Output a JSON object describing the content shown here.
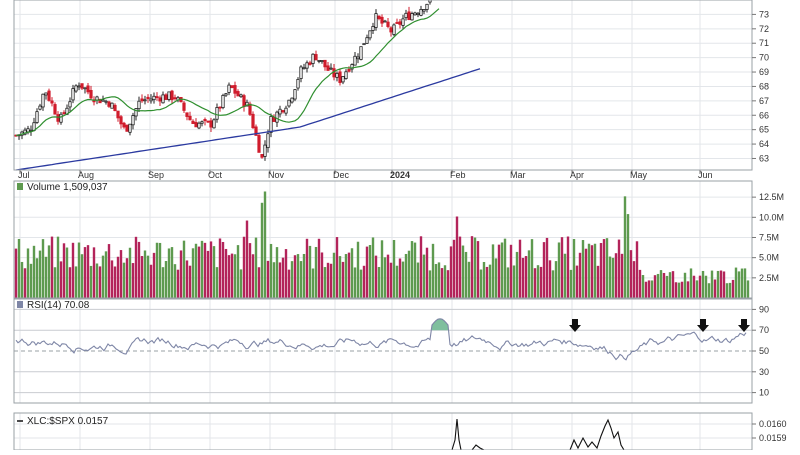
{
  "chart_data": {
    "type": "stock_chart_panels",
    "x_labels": [
      "Jul",
      "Aug",
      "Sep",
      "Oct",
      "Nov",
      "Dec",
      "2024",
      "Feb",
      "Mar",
      "Apr",
      "May",
      "Jun"
    ],
    "price_panel": {
      "type": "candlestick",
      "yticks": [
        63,
        64,
        65,
        66,
        67,
        68,
        69,
        70,
        71,
        72,
        73
      ],
      "ylim": [
        62.2,
        74.0
      ],
      "moving_average_colors": [
        "#2f8f2f",
        "#2b3aa0"
      ],
      "up_color": "#222222",
      "down_color": "#d01c2c"
    },
    "volume_panel": {
      "label": "Volume 1,509,037",
      "yticks": [
        "2.5M",
        "5.0M",
        "7.5M",
        "10.0M",
        "12.5M"
      ],
      "ytick_values": [
        2.5,
        5.0,
        7.5,
        10.0,
        12.5
      ],
      "ylim": [
        0,
        14.5
      ],
      "unit": "M",
      "up_color": "#5e9a4f",
      "down_color": "#b3245a"
    },
    "rsi_panel": {
      "label": "RSI(14) 70.08",
      "yticks": [
        10,
        30,
        50,
        70,
        90
      ],
      "ylim": [
        0,
        100
      ],
      "line_color": "#7e86a6",
      "overbought_fill": "#7fbf9e",
      "arrow_points": [
        "Apr",
        "Jun",
        "Jun"
      ]
    },
    "ratio_panel": {
      "label": "XLC:$SPX 0.0157",
      "yticks": [
        "0.0160",
        "0.0159"
      ],
      "ytick_values": [
        0.016,
        0.0159
      ],
      "line_color": "#111111"
    }
  }
}
